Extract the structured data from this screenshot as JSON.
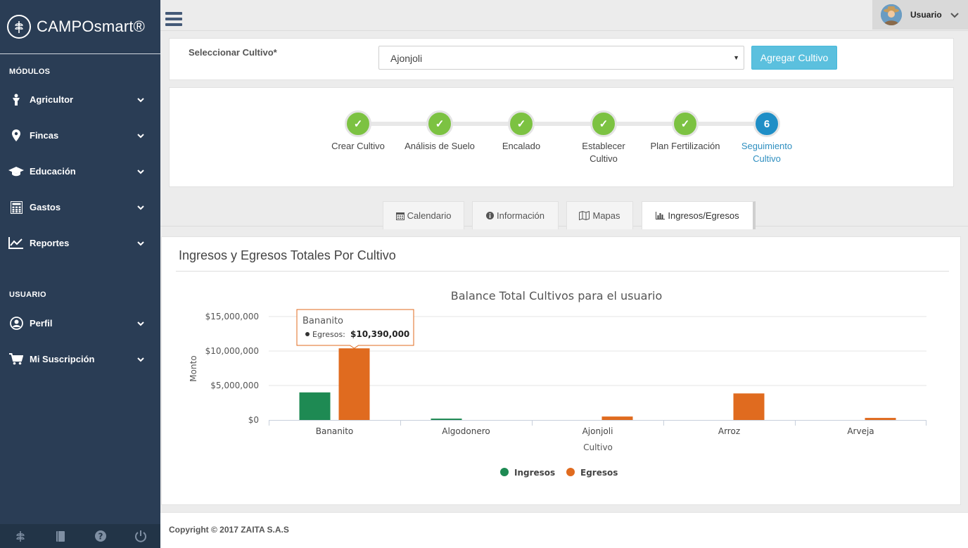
{
  "brand": {
    "name": "CAMPOsmart®"
  },
  "sidebar": {
    "modules_title": "MÓDULOS",
    "modules": [
      {
        "label": "Agricultor",
        "icon": "farmer-icon"
      },
      {
        "label": "Fincas",
        "icon": "map-marker-icon"
      },
      {
        "label": "Educación",
        "icon": "graduation-cap-icon"
      },
      {
        "label": "Gastos",
        "icon": "calculator-icon"
      },
      {
        "label": "Reportes",
        "icon": "line-chart-icon"
      }
    ],
    "user_title": "USUARIO",
    "user_items": [
      {
        "label": "Perfil",
        "icon": "user-circle-icon"
      },
      {
        "label": "Mi Suscripción",
        "icon": "cart-icon"
      }
    ],
    "footer_icons": [
      "leaf-icon",
      "book-icon",
      "help-icon",
      "power-icon"
    ]
  },
  "topbar": {
    "user_name": "Usuario"
  },
  "crop_select": {
    "label": "Seleccionar Cultivo*",
    "value": "Ajonjoli",
    "add_button": "Agregar Cultivo"
  },
  "wizard": {
    "steps": [
      {
        "label": "Crear Cultivo",
        "status": "done"
      },
      {
        "label": "Análisis de Suelo",
        "status": "done"
      },
      {
        "label": "Encalado",
        "status": "done"
      },
      {
        "label": "Establecer Cultivo",
        "status": "done"
      },
      {
        "label": "Plan Fertilización",
        "status": "done"
      },
      {
        "label": "Seguimiento Cultivo",
        "status": "active",
        "number": "6"
      }
    ]
  },
  "tabs": [
    {
      "label": "Calendario",
      "icon": "calendar-icon"
    },
    {
      "label": "Información",
      "icon": "info-circle-icon"
    },
    {
      "label": "Mapas",
      "icon": "map-icon"
    },
    {
      "label": "Ingresos/Egresos",
      "icon": "bar-chart-icon",
      "active": true
    }
  ],
  "panel": {
    "heading": "Ingresos y Egresos Totales Por Cultivo"
  },
  "chart_data": {
    "type": "bar",
    "title": "Balance Total Cultivos para el usuario",
    "xlabel": "Cultivo",
    "ylabel": "Monto",
    "categories": [
      "Bananito",
      "Algodonero",
      "Ajonjoli",
      "Arroz",
      "Arveja"
    ],
    "series": [
      {
        "name": "Ingresos",
        "color": "#1e8a53",
        "values": [
          4000000,
          200000,
          0,
          0,
          0
        ]
      },
      {
        "name": "Egresos",
        "color": "#e06b1f",
        "values": [
          10390000,
          0,
          500000,
          3850000,
          300000
        ]
      }
    ],
    "ylim": [
      0,
      15000000
    ],
    "yticks": [
      "$0",
      "$5,000,000",
      "$10,000,000",
      "$15,000,000"
    ],
    "legend_position": "bottom",
    "tooltip": {
      "category": "Bananito",
      "series": "Egresos",
      "label": "Egresos:",
      "value": "$10,390,000"
    }
  },
  "footer": {
    "copyright": "Copyright © 2017 ZAITA S.A.S"
  }
}
